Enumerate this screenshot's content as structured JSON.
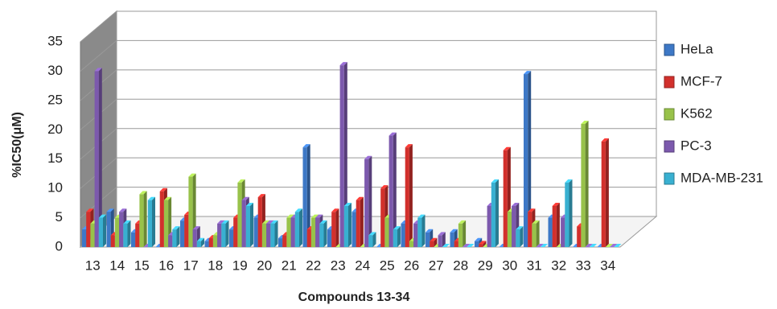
{
  "chart_data": {
    "type": "bar3d",
    "x_label": "Compounds 13-34",
    "y_label": "%IC50(μM)",
    "categories": [
      "13",
      "14",
      "15",
      "16",
      "17",
      "18",
      "19",
      "20",
      "21",
      "22",
      "23",
      "24",
      "25",
      "26",
      "27",
      "28",
      "29",
      "30",
      "31",
      "32",
      "33",
      "34"
    ],
    "series": [
      {
        "name": "HeLa",
        "color": "#3d78c6",
        "values": [
          3,
          6,
          2.5,
          0,
          4.5,
          1,
          3,
          5,
          1.5,
          17,
          3,
          6,
          0,
          4,
          2.5,
          2.5,
          1,
          0,
          29.5,
          5,
          0,
          0
        ]
      },
      {
        "name": "MCF-7",
        "color": "#d2302c",
        "values": [
          6,
          2,
          4,
          9.5,
          5.5,
          1.5,
          5,
          8.5,
          2,
          3,
          6,
          8,
          10,
          17,
          1,
          1,
          0.5,
          16.5,
          6,
          7,
          3.5,
          18
        ]
      },
      {
        "name": "K562",
        "color": "#98c24a",
        "values": [
          4,
          5,
          9,
          8,
          12,
          2,
          11,
          4,
          5,
          5,
          0,
          0,
          5,
          1,
          0,
          4,
          0,
          6,
          4,
          0,
          21,
          0
        ]
      },
      {
        "name": "PC-3",
        "color": "#7c59ad",
        "values": [
          30,
          6,
          0,
          2,
          3,
          4,
          8,
          4,
          5,
          5,
          31,
          15,
          19,
          4,
          2,
          0,
          7,
          7,
          0,
          5,
          0,
          0
        ]
      },
      {
        "name": "MDA-MB-231",
        "color": "#39b0d1",
        "values": [
          5,
          4,
          8,
          3,
          1,
          4,
          7,
          4,
          6,
          4,
          7,
          2,
          3,
          5,
          0,
          0,
          11,
          3,
          0,
          11,
          0,
          0
        ]
      }
    ],
    "ylim": [
      0,
      35
    ],
    "yticks": [
      0,
      5,
      10,
      15,
      20,
      25,
      30,
      35
    ],
    "grid": true,
    "legend": "right"
  }
}
